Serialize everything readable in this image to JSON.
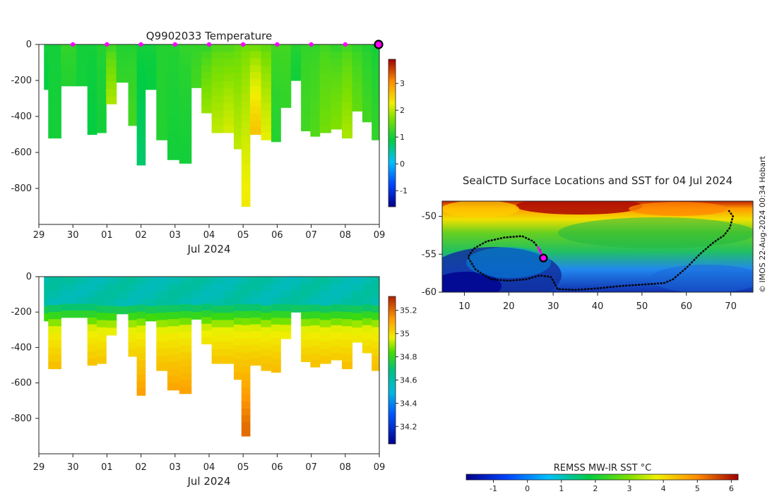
{
  "copyright": "© IMOS 22-Aug-2024 00:34 Hobart",
  "chart_data": [
    {
      "type": "heatmap",
      "name": "temperature-section",
      "title": "Q9902033  Temperature",
      "xlabel": "Jul 2024",
      "ylabel": "",
      "x_tick_labels": [
        "29",
        "30",
        "01",
        "02",
        "03",
        "04",
        "05",
        "06",
        "07",
        "08",
        "09"
      ],
      "x_range": [
        29,
        39
      ],
      "y_ticks": [
        0,
        -200,
        -400,
        -600,
        -800
      ],
      "y_range": [
        -1000,
        0
      ],
      "colorbar_ticks": [
        -1,
        0,
        1,
        2,
        3
      ],
      "colorbar_range": [
        -1.6,
        3.9
      ],
      "surface_markers_x": [
        30,
        31,
        32,
        33,
        34,
        35,
        36,
        37,
        38
      ],
      "current_marker_x": 39,
      "profiles": [
        {
          "x": 29.15,
          "depth": 250,
          "surface": 1.0,
          "deep": 0.9
        },
        {
          "x": 29.4,
          "depth": 520,
          "surface": 1.0,
          "deep": 1.0
        },
        {
          "x": 29.9,
          "depth": 230,
          "surface": 1.2,
          "deep": 1.1
        },
        {
          "x": 30.3,
          "depth": 230,
          "surface": 1.0,
          "deep": 1.0
        },
        {
          "x": 30.55,
          "depth": 500,
          "surface": 1.0,
          "deep": 0.9
        },
        {
          "x": 30.85,
          "depth": 490,
          "surface": 1.1,
          "deep": 1.0
        },
        {
          "x": 31.1,
          "depth": 330,
          "surface": 1.3,
          "deep": 1.9
        },
        {
          "x": 31.45,
          "depth": 210,
          "surface": 1.1,
          "deep": 1.2
        },
        {
          "x": 31.8,
          "depth": 450,
          "surface": 1.1,
          "deep": 1.3
        },
        {
          "x": 31.95,
          "depth": 670,
          "surface": 1.0,
          "deep": 0.7
        },
        {
          "x": 32.3,
          "depth": 250,
          "surface": 1.0,
          "deep": 0.9
        },
        {
          "x": 32.6,
          "depth": 530,
          "surface": 1.1,
          "deep": 1.1
        },
        {
          "x": 32.95,
          "depth": 640,
          "surface": 1.1,
          "deep": 1.0
        },
        {
          "x": 33.3,
          "depth": 660,
          "surface": 1.2,
          "deep": 1.0
        },
        {
          "x": 33.65,
          "depth": 240,
          "surface": 1.2,
          "deep": 1.3
        },
        {
          "x": 33.9,
          "depth": 380,
          "surface": 1.2,
          "deep": 1.8
        },
        {
          "x": 34.25,
          "depth": 490,
          "surface": 1.4,
          "deep": 2.0
        },
        {
          "x": 34.6,
          "depth": 490,
          "surface": 1.4,
          "deep": 2.1
        },
        {
          "x": 34.85,
          "depth": 580,
          "surface": 1.5,
          "deep": 2.0
        },
        {
          "x": 35.05,
          "depth": 900,
          "surface": 1.6,
          "deep": 2.3
        },
        {
          "x": 35.35,
          "depth": 500,
          "surface": 1.6,
          "deep": 2.6
        },
        {
          "x": 35.7,
          "depth": 530,
          "surface": 1.5,
          "deep": 2.2
        },
        {
          "x": 35.95,
          "depth": 540,
          "surface": 1.3,
          "deep": 1.1
        },
        {
          "x": 36.25,
          "depth": 350,
          "surface": 1.3,
          "deep": 1.2
        },
        {
          "x": 36.55,
          "depth": 200,
          "surface": 1.1,
          "deep": 1.0
        },
        {
          "x": 36.85,
          "depth": 480,
          "surface": 1.2,
          "deep": 1.3
        },
        {
          "x": 37.1,
          "depth": 510,
          "surface": 1.2,
          "deep": 1.4
        },
        {
          "x": 37.4,
          "depth": 490,
          "surface": 1.3,
          "deep": 1.6
        },
        {
          "x": 37.75,
          "depth": 470,
          "surface": 1.2,
          "deep": 1.7
        },
        {
          "x": 38.05,
          "depth": 520,
          "surface": 1.3,
          "deep": 1.9
        },
        {
          "x": 38.35,
          "depth": 370,
          "surface": 1.2,
          "deep": 1.5
        },
        {
          "x": 38.65,
          "depth": 430,
          "surface": 1.1,
          "deep": 1.3
        },
        {
          "x": 38.9,
          "depth": 530,
          "surface": 1.0,
          "deep": 1.2
        }
      ]
    },
    {
      "type": "heatmap",
      "name": "salinity-section",
      "title": "",
      "xlabel": "Jul 2024",
      "ylabel": "",
      "x_tick_labels": [
        "29",
        "30",
        "01",
        "02",
        "03",
        "04",
        "05",
        "06",
        "07",
        "08",
        "09"
      ],
      "x_range": [
        29,
        39
      ],
      "y_ticks": [
        0,
        -200,
        -400,
        -600,
        -800
      ],
      "y_range": [
        -1000,
        0
      ],
      "colorbar_ticks": [
        34.2,
        34.4,
        34.6,
        34.8,
        35,
        35.2
      ],
      "colorbar_range": [
        34.05,
        35.32
      ],
      "mixed_layer_depth": 170,
      "surface_value": 34.6,
      "bottom_value": 35.2
    },
    {
      "type": "heatmap",
      "name": "sst-map",
      "title": "SealCTD Surface Locations and SST for 04 Jul 2024",
      "xlabel": "",
      "ylabel": "",
      "x_ticks": [
        10,
        20,
        30,
        40,
        50,
        60,
        70
      ],
      "x_range": [
        5,
        75
      ],
      "y_ticks": [
        -50,
        -55,
        -60
      ],
      "y_range": [
        -60,
        -48
      ],
      "colorbar_label": "REMSS MW-IR SST °C",
      "colorbar_ticks": [
        -1,
        0,
        1,
        2,
        3,
        4,
        5,
        6
      ],
      "colorbar_range": [
        -1.8,
        6.2
      ],
      "track": [
        [
          69.5,
          -49.2
        ],
        [
          70.5,
          -50.0
        ],
        [
          69.8,
          -51.5
        ],
        [
          68.5,
          -52.5
        ],
        [
          66.0,
          -53.5
        ],
        [
          63.0,
          -55.0
        ],
        [
          60.0,
          -56.8
        ],
        [
          57.0,
          -58.3
        ],
        [
          55.0,
          -58.8
        ],
        [
          50.0,
          -59.0
        ],
        [
          45.0,
          -59.2
        ],
        [
          40.0,
          -59.5
        ],
        [
          35.0,
          -59.7
        ],
        [
          31.0,
          -59.6
        ],
        [
          30.0,
          -58.5
        ],
        [
          29.5,
          -58.0
        ],
        [
          27.0,
          -57.8
        ],
        [
          24.0,
          -58.3
        ],
        [
          20.0,
          -58.5
        ],
        [
          16.0,
          -58.3
        ],
        [
          12.5,
          -57.0
        ],
        [
          10.8,
          -55.4
        ],
        [
          12.0,
          -54.3
        ],
        [
          15.0,
          -53.3
        ],
        [
          19.0,
          -52.8
        ],
        [
          23.0,
          -52.6
        ],
        [
          25.5,
          -53.3
        ],
        [
          27.0,
          -54.4
        ],
        [
          27.8,
          -55.5
        ]
      ],
      "recent_track": [
        [
          26.5,
          -54.0
        ],
        [
          27.2,
          -54.8
        ],
        [
          27.8,
          -55.5
        ]
      ],
      "current_position": [
        27.8,
        -55.5
      ]
    }
  ]
}
